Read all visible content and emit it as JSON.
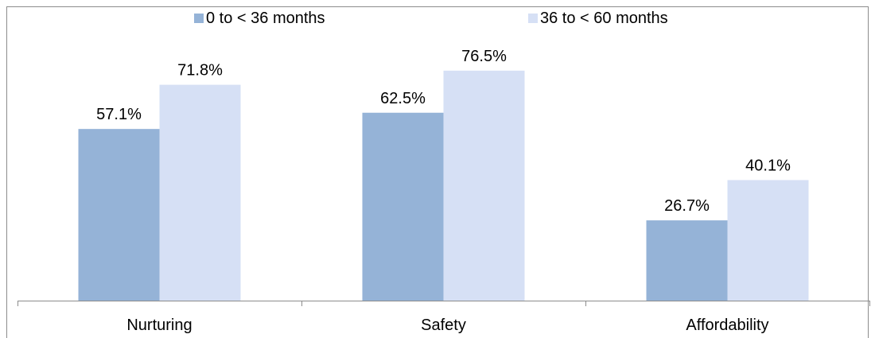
{
  "chart_data": {
    "type": "bar",
    "categories": [
      "Nurturing",
      "Safety",
      "Affordability"
    ],
    "series": [
      {
        "name": "0 to < 36 months",
        "values": [
          57.1,
          62.5,
          26.7
        ],
        "labels": [
          "57.1%",
          "62.5%",
          "26.7%"
        ],
        "color": "#95b3d7"
      },
      {
        "name": "36 to < 60 months",
        "values": [
          71.8,
          76.5,
          40.1
        ],
        "labels": [
          "71.8%",
          "76.5%",
          "40.1%"
        ],
        "color": "#d6e0f5"
      }
    ],
    "ylim": [
      0,
      100
    ],
    "grid": false,
    "legend": "top-center",
    "title": "",
    "xlabel": "",
    "ylabel": ""
  }
}
